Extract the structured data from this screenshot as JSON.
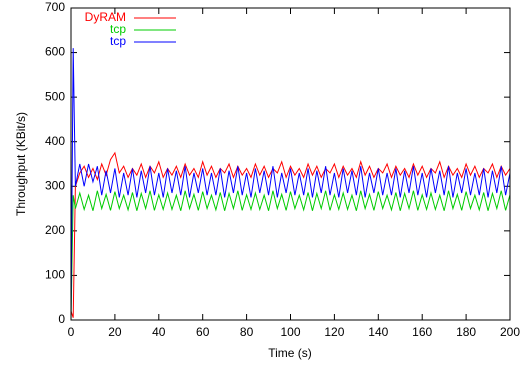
{
  "chart_data": {
    "type": "line",
    "xlabel": "Time (s)",
    "ylabel": "Throughput (KBit/s)",
    "xlim": [
      0,
      200
    ],
    "ylim": [
      0,
      700
    ],
    "xticks": [
      0,
      20,
      40,
      60,
      80,
      100,
      120,
      140,
      160,
      180,
      200
    ],
    "yticks": [
      0,
      100,
      200,
      300,
      400,
      500,
      600,
      700
    ],
    "legend": "upper-left",
    "x": [
      0,
      1,
      2,
      4,
      6,
      8,
      10,
      12,
      14,
      16,
      18,
      20,
      22,
      24,
      26,
      28,
      30,
      32,
      34,
      36,
      38,
      40,
      42,
      44,
      46,
      48,
      50,
      52,
      54,
      56,
      58,
      60,
      62,
      64,
      66,
      68,
      70,
      72,
      74,
      76,
      78,
      80,
      82,
      84,
      86,
      88,
      90,
      92,
      94,
      96,
      98,
      100,
      102,
      104,
      106,
      108,
      110,
      112,
      114,
      116,
      118,
      120,
      122,
      124,
      126,
      128,
      130,
      132,
      134,
      136,
      138,
      140,
      142,
      144,
      146,
      148,
      150,
      152,
      154,
      156,
      158,
      160,
      162,
      164,
      166,
      168,
      170,
      172,
      174,
      176,
      178,
      180,
      182,
      184,
      186,
      188,
      190,
      192,
      194,
      196,
      198,
      200
    ],
    "series": [
      {
        "name": "DyRAM",
        "color": "#ff0000",
        "values": [
          20,
          5,
          300,
          330,
          345,
          320,
          340,
          315,
          350,
          325,
          360,
          375,
          330,
          345,
          320,
          340,
          325,
          350,
          320,
          345,
          330,
          355,
          320,
          340,
          325,
          345,
          320,
          350,
          325,
          340,
          320,
          355,
          325,
          345,
          320,
          340,
          330,
          350,
          320,
          345,
          325,
          340,
          320,
          350,
          325,
          345,
          320,
          340,
          330,
          355,
          320,
          345,
          325,
          340,
          320,
          350,
          325,
          345,
          320,
          340,
          330,
          350,
          320,
          345,
          325,
          340,
          320,
          355,
          325,
          345,
          320,
          340,
          330,
          350,
          320,
          345,
          325,
          340,
          320,
          350,
          325,
          345,
          320,
          340,
          330,
          355,
          320,
          345,
          325,
          340,
          320,
          350,
          325,
          345,
          320,
          340,
          330,
          350,
          320,
          345,
          325,
          340
        ]
      },
      {
        "name": "tcp",
        "color": "#00cc00",
        "values": [
          0,
          280,
          250,
          285,
          248,
          280,
          245,
          290,
          250,
          282,
          246,
          288,
          250,
          280,
          247,
          286,
          245,
          284,
          250,
          290,
          246,
          281,
          248,
          285,
          248,
          280,
          245,
          290,
          250,
          282,
          246,
          288,
          250,
          280,
          247,
          286,
          245,
          284,
          250,
          290,
          246,
          281,
          248,
          285,
          248,
          280,
          245,
          290,
          250,
          282,
          246,
          288,
          250,
          280,
          247,
          286,
          245,
          284,
          250,
          290,
          246,
          281,
          248,
          285,
          248,
          280,
          245,
          290,
          250,
          282,
          246,
          288,
          250,
          280,
          247,
          286,
          245,
          284,
          250,
          290,
          246,
          281,
          248,
          285,
          248,
          280,
          245,
          290,
          250,
          282,
          246,
          288,
          250,
          280,
          247,
          286,
          245,
          284,
          250,
          290,
          246,
          281
        ]
      },
      {
        "name": "tcp",
        "color": "#0000ff",
        "values": [
          0,
          610,
          300,
          350,
          300,
          350,
          310,
          345,
          280,
          335,
          285,
          340,
          275,
          330,
          280,
          340,
          275,
          335,
          285,
          345,
          280,
          330,
          275,
          340,
          285,
          335,
          280,
          345,
          275,
          330,
          285,
          340,
          280,
          330,
          280,
          340,
          275,
          335,
          285,
          345,
          280,
          330,
          275,
          340,
          285,
          335,
          280,
          345,
          275,
          330,
          285,
          340,
          280,
          330,
          280,
          340,
          275,
          335,
          285,
          345,
          280,
          330,
          275,
          340,
          285,
          335,
          280,
          345,
          275,
          330,
          285,
          340,
          280,
          330,
          280,
          340,
          275,
          335,
          285,
          345,
          280,
          330,
          275,
          340,
          285,
          335,
          280,
          345,
          275,
          330,
          285,
          340,
          280,
          330,
          280,
          340,
          275,
          335,
          285,
          345,
          280,
          330
        ]
      }
    ]
  }
}
